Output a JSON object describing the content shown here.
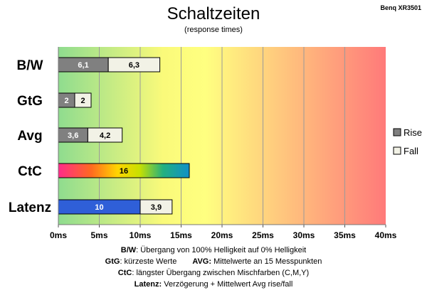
{
  "header": {
    "title": "Schaltzeiten",
    "subtitle": "(response times)",
    "model": "Benq XR3501"
  },
  "chart_data": {
    "type": "bar",
    "orientation": "horizontal",
    "stacked": true,
    "title": "Schaltzeiten",
    "subtitle": "(response times)",
    "categories": [
      "B/W",
      "GtG",
      "Avg",
      "CtC",
      "Latenz"
    ],
    "series": [
      {
        "name": "Rise",
        "values": [
          6.1,
          2,
          3.6,
          16,
          10
        ],
        "labels": [
          "6,1",
          "2",
          "3,6",
          "16",
          "10"
        ]
      },
      {
        "name": "Fall",
        "values": [
          6.3,
          2,
          4.2,
          null,
          3.9
        ],
        "labels": [
          "6,3",
          "2",
          "4,2",
          "",
          "3,9"
        ]
      }
    ],
    "xlim": [
      0,
      40
    ],
    "xticks": [
      0,
      5,
      10,
      15,
      20,
      25,
      30,
      35,
      40
    ],
    "xtick_labels": [
      "0ms",
      "5ms",
      "10ms",
      "15ms",
      "20ms",
      "25ms",
      "30ms",
      "35ms",
      "40ms"
    ],
    "grid": true,
    "legend_position": "right",
    "background": "horizontal gradient green-yellow-red",
    "colors": {
      "rise": "#808080",
      "fall": "#f2f2e6",
      "latenz_rise": "#2f5fd8",
      "bg_green": "#8fdc8f",
      "bg_yellow": "#ffff80",
      "bg_red": "#ff7a7a"
    }
  },
  "footnotes": {
    "bw_key": "B/W",
    "bw_text": ":  Übergang von 100% Helligkeit auf 0% Helligkeit",
    "gtg_key": "GtG",
    "gtg_text": ": kürzeste  Werte",
    "avg_key": "AVG:",
    "avg_text": " Mittelwerte  an 15 Messpunkten",
    "ctc_key": "CtC",
    "ctc_text": ": längster Übergang  zwischen Mischfarben  (C,M,Y)",
    "latenz_key": "Latenz:",
    "latenz_text": " Verzögerung  + Mittelwert Avg rise/fall"
  }
}
